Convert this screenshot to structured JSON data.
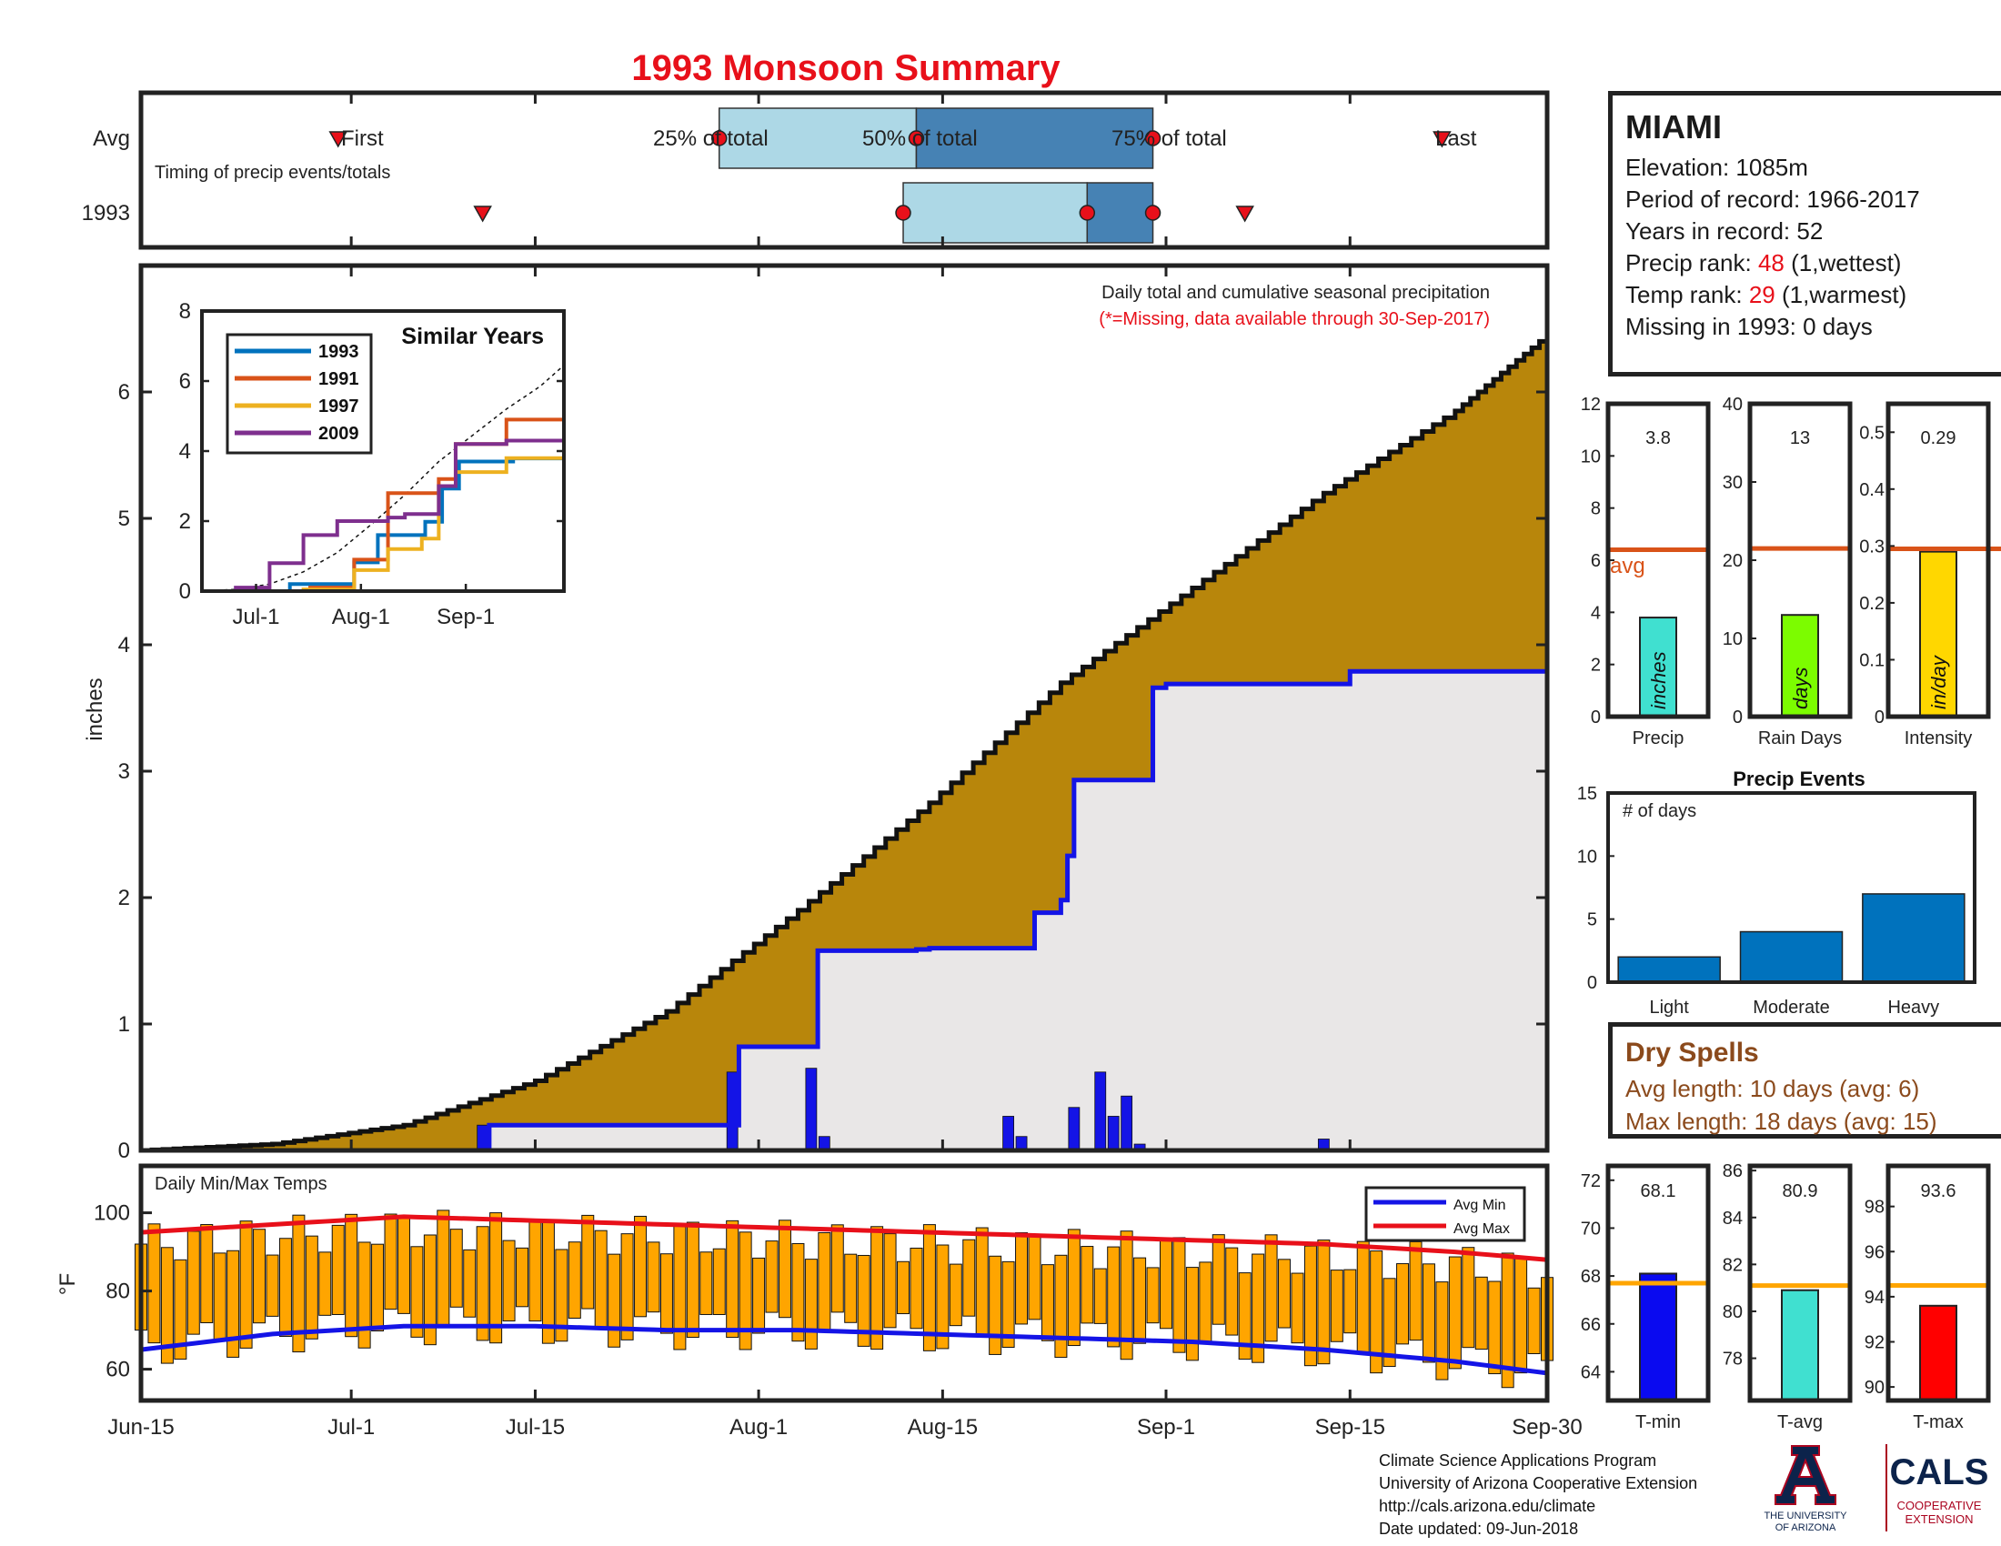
{
  "title": "1993 Monsoon Summary",
  "timing": {
    "row_labels": [
      "Avg",
      "1993"
    ],
    "caption": "Timing of precip events/totals",
    "avg_markers": {
      "first": "First",
      "p25": "25% of total",
      "p50": "50% of total",
      "p75": "75% of total",
      "last": "Last"
    },
    "date_markers": {
      "avg": {
        "first": 15,
        "p25": 44,
        "p50": 59,
        "p75": 77,
        "last": 99
      },
      "year": {
        "first": 26,
        "p25": 58,
        "p50": 72,
        "p75": 77,
        "last": 84
      }
    }
  },
  "main_chart": {
    "note": "Daily total and cumulative seasonal precipitation",
    "missing_note": "(*=Missing, data available through 30-Sep-2017)",
    "ylabel": "inches",
    "yticks": [
      "0",
      "1",
      "2",
      "3",
      "4",
      "5",
      "6"
    ],
    "xticks": [
      "Jun-15",
      "Jul-1",
      "Jul-15",
      "Aug-1",
      "Aug-15",
      "Sep-1",
      "Sep-15",
      "Sep-30"
    ]
  },
  "inset": {
    "title": "Similar Years",
    "legend": [
      "1993",
      "1991",
      "1997",
      "2009"
    ],
    "yticks": [
      "0",
      "2",
      "4",
      "6",
      "8"
    ],
    "xticks": [
      "Jul-1",
      "Aug-1",
      "Sep-1"
    ]
  },
  "temp_chart": {
    "label": "Daily Min/Max Temps",
    "ylabel": "°F",
    "yticks": [
      "60",
      "80",
      "100"
    ],
    "legend": [
      "Avg Min",
      "Avg Max"
    ]
  },
  "station": {
    "name": "MIAMI",
    "elevation_label": "Elevation: 1085m",
    "period_label": "Period of record: 1966-2017",
    "years_label": "Years in record: 52",
    "precip_rank_prefix": "Precip rank: ",
    "precip_rank": "48",
    "precip_rank_suffix": " (1,wettest)",
    "temp_rank_prefix": "Temp rank: ",
    "temp_rank": "29",
    "temp_rank_suffix": " (1,warmest)",
    "missing_label": "Missing in 1993: 0 days"
  },
  "summary_bars": [
    {
      "label": "Precip",
      "value_text": "3.8",
      "unit": "inches",
      "avg_label": "avg",
      "yticks": [
        "0",
        "2",
        "4",
        "6",
        "8",
        "10",
        "12"
      ]
    },
    {
      "label": "Rain Days",
      "value_text": "13",
      "unit": "days",
      "yticks": [
        "0",
        "10",
        "20",
        "30",
        "40"
      ]
    },
    {
      "label": "Intensity",
      "value_text": "0.29",
      "unit": "in/day",
      "yticks": [
        "0",
        "0.1",
        "0.2",
        "0.3",
        "0.4",
        "0.5"
      ]
    }
  ],
  "events": {
    "title": "Precip Events",
    "ylabel_inside": "# of days",
    "yticks": [
      "0",
      "5",
      "10",
      "15"
    ],
    "categories": [
      "Light",
      "Moderate",
      "Heavy"
    ]
  },
  "dry_spells": {
    "title": "Dry Spells",
    "avg_line": "Avg length: 10 days (avg: 6)",
    "max_line": "Max length: 18 days (avg: 15)"
  },
  "temp_bars": [
    {
      "label": "T-min",
      "value_text": "68.1",
      "yticks": [
        "64",
        "66",
        "68",
        "70",
        "72"
      ]
    },
    {
      "label": "T-avg",
      "value_text": "80.9",
      "yticks": [
        "78",
        "80",
        "82",
        "84",
        "86"
      ]
    },
    {
      "label": "T-max",
      "value_text": "93.6",
      "yticks": [
        "90",
        "92",
        "94",
        "96",
        "98"
      ]
    }
  ],
  "footer": [
    "Climate Science Applications Program",
    "University of Arizona Cooperative Extension",
    "http://cals.arizona.edu/climate",
    " Date updated: 09-Jun-2018"
  ],
  "logos": {
    "ua_line1": "THE UNIVERSITY",
    "ua_line2": "OF ARIZONA",
    "cals": "CALS",
    "cals_sub1": "COOPERATIVE",
    "cals_sub2": "EXTENSION"
  },
  "colors": {
    "title": "#e8101a",
    "avg_cum": "#b8860b",
    "obs_cum": "#1414e6",
    "daily_bar": "#1414e6",
    "light_box": "#add8e6",
    "dark_box": "#4682b4",
    "marker": "#e8101a",
    "y1993": "#0072bd",
    "y1991": "#d95319",
    "y1997": "#edb120",
    "y2009": "#7e2f8e",
    "avg_line": "#d95319",
    "precip_bar": "#40e0d0",
    "days_bar": "#7cfc00",
    "intensity_bar": "#ffd700",
    "events_bar": "#0072bd",
    "temp_bar": "#ffa500",
    "avg_min": "#1414e6",
    "avg_max": "#e8101a",
    "tmin_bar": "#0a0af0",
    "tavg_bar": "#40e0d0",
    "tmax_bar": "#ff0000",
    "temp_avg_line": "#ffa500"
  },
  "chart_data": [
    {
      "type": "area",
      "title": "Daily total and cumulative seasonal precipitation",
      "xlabel": "",
      "ylabel": "inches",
      "x_range": [
        "Jun-15",
        "Sep-30"
      ],
      "ylim": [
        0,
        7
      ],
      "series": [
        {
          "name": "Average cumulative",
          "x_day": [
            0,
            10,
            20,
            30,
            40,
            50,
            60,
            70,
            80,
            90,
            100,
            107
          ],
          "values": [
            0,
            0.05,
            0.2,
            0.55,
            1.1,
            1.9,
            2.75,
            3.7,
            4.45,
            5.2,
            5.85,
            6.45
          ]
        },
        {
          "name": "1993 cumulative",
          "x_day": [
            0,
            26,
            26.5,
            45,
            45.5,
            51,
            51.5,
            59,
            60,
            67,
            68,
            70,
            70.5,
            71,
            77,
            78,
            92,
            107
          ],
          "values": [
            0,
            0,
            0.2,
            0.2,
            0.82,
            0.82,
            1.58,
            1.59,
            1.6,
            1.6,
            1.88,
            1.98,
            2.33,
            2.93,
            3.66,
            3.69,
            3.79,
            3.79
          ]
        },
        {
          "name": "1993 daily",
          "x_day": [
            26,
            45,
            51,
            52,
            66,
            67,
            71,
            73,
            74,
            75,
            76,
            90
          ],
          "values": [
            0.2,
            0.62,
            0.65,
            0.11,
            0.27,
            0.11,
            0.34,
            0.62,
            0.27,
            0.43,
            0.05,
            0.09
          ]
        }
      ]
    },
    {
      "type": "line",
      "title": "Similar Years",
      "ylim": [
        0,
        8
      ],
      "x_range": [
        "Jun-15",
        "Sep-30"
      ],
      "series": [
        {
          "name": "1993",
          "x_day": [
            0,
            26,
            45,
            52,
            66,
            71,
            76,
            92,
            107
          ],
          "values": [
            0,
            0.2,
            0.82,
            1.6,
            1.98,
            2.93,
            3.7,
            3.79,
            3.79
          ]
        },
        {
          "name": "1991",
          "x_day": [
            0,
            32,
            45,
            55,
            60,
            70,
            75,
            90,
            100,
            107
          ],
          "values": [
            0,
            0.1,
            0.9,
            2.8,
            2.8,
            3.2,
            4.2,
            4.9,
            4.9,
            4.9
          ]
        },
        {
          "name": "1997",
          "x_day": [
            0,
            30,
            45,
            55,
            65,
            70,
            75,
            90,
            107
          ],
          "values": [
            0,
            0.05,
            0.6,
            1.2,
            1.5,
            3.0,
            3.4,
            3.8,
            3.8
          ]
        },
        {
          "name": "2009",
          "x_day": [
            0,
            10,
            20,
            30,
            40,
            55,
            60,
            70,
            75,
            90,
            107
          ],
          "values": [
            0,
            0.1,
            0.8,
            1.6,
            2.0,
            2.1,
            2.2,
            3.0,
            4.2,
            4.3,
            4.3
          ]
        }
      ]
    },
    {
      "type": "bar",
      "title": "Daily Min/Max Temps",
      "ylabel": "°F",
      "ylim": [
        52,
        112
      ],
      "x_range": [
        "Jun-15",
        "Sep-30"
      ],
      "series": [
        {
          "name": "Avg Max",
          "x_day": [
            0,
            10,
            20,
            30,
            40,
            50,
            60,
            70,
            80,
            90,
            100,
            107
          ],
          "values": [
            95,
            97,
            99,
            98,
            97,
            96,
            95,
            94,
            93,
            92,
            90,
            88
          ]
        },
        {
          "name": "Avg Min",
          "x_day": [
            0,
            10,
            20,
            30,
            40,
            50,
            60,
            70,
            80,
            90,
            100,
            107
          ],
          "values": [
            65,
            69,
            71,
            71,
            70,
            70,
            69,
            68,
            67,
            65,
            62,
            59
          ]
        }
      ]
    },
    {
      "type": "bar",
      "title": "Precip",
      "categories": [
        "Precip"
      ],
      "values": [
        3.8
      ],
      "avg": 6.4,
      "ylim": [
        0,
        12
      ]
    },
    {
      "type": "bar",
      "title": "Rain Days",
      "categories": [
        "Rain Days"
      ],
      "values": [
        13
      ],
      "avg": 21.5,
      "ylim": [
        0,
        40
      ]
    },
    {
      "type": "bar",
      "title": "Intensity",
      "categories": [
        "Intensity"
      ],
      "values": [
        0.29
      ],
      "avg": 0.295,
      "ylim": [
        0,
        0.55
      ]
    },
    {
      "type": "bar",
      "title": "Precip Events",
      "categories": [
        "Light",
        "Moderate",
        "Heavy"
      ],
      "values": [
        2,
        4,
        7
      ],
      "ylim": [
        0,
        15
      ]
    },
    {
      "type": "bar",
      "title": "T-min",
      "categories": [
        "T-min"
      ],
      "values": [
        68.1
      ],
      "avg": 67.7,
      "ylim": [
        62.8,
        72.6
      ]
    },
    {
      "type": "bar",
      "title": "T-avg",
      "categories": [
        "T-avg"
      ],
      "values": [
        80.9
      ],
      "avg": 81.1,
      "ylim": [
        76.2,
        86.2
      ]
    },
    {
      "type": "bar",
      "title": "T-max",
      "categories": [
        "T-max"
      ],
      "values": [
        93.6
      ],
      "avg": 94.5,
      "ylim": [
        89.4,
        99.8
      ]
    }
  ]
}
